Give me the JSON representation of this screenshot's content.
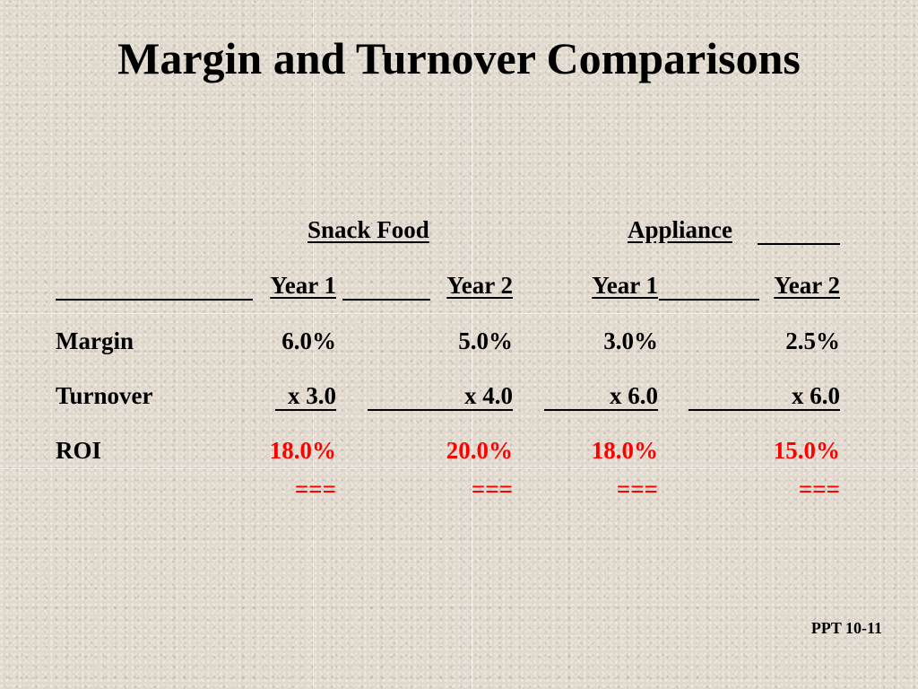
{
  "title": "Margin and Turnover Comparisons",
  "groups": {
    "snack_food": "Snack Food",
    "appliance": "Appliance"
  },
  "years": [
    "Year 1",
    "Year 2",
    "Year 1",
    "Year 2"
  ],
  "rows": [
    {
      "label": "Margin",
      "values": [
        "6.0%",
        "5.0%",
        "3.0%",
        "2.5%"
      ]
    },
    {
      "label": "Turnover",
      "values": [
        "x 3.0",
        "x 4.0",
        "x 6.0",
        "x 6.0"
      ]
    },
    {
      "label": "ROI",
      "values": [
        "18.0%",
        "20.0%",
        "18.0%",
        "15.0%"
      ]
    }
  ],
  "totals_marker": "===",
  "footer": "PPT 10-11",
  "colors": {
    "background": "#e0d8cc",
    "roi": "#ff0000",
    "text": "#000000"
  }
}
